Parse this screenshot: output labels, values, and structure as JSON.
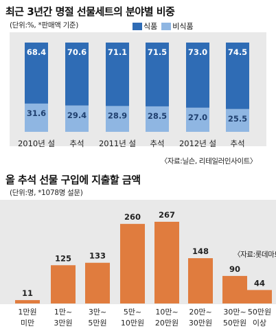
{
  "chart_data": [
    {
      "type": "bar",
      "stacked": true,
      "title": "최근 3년간 명절 선물세트의 분야별 비중",
      "unit_note": "(단위:%, *판매액 기준)",
      "source": "〈자료:닐슨, 리테일러인사이트〉",
      "legend_position": "top-right",
      "categories": [
        "2010년 설",
        "추석",
        "2011년 설",
        "추석",
        "2012년 설",
        "추석"
      ],
      "series": [
        {
          "name": "식품",
          "color": "#2f6cb5",
          "values": [
            68.4,
            70.6,
            71.1,
            71.5,
            73.0,
            74.5
          ]
        },
        {
          "name": "비식품",
          "color": "#8fb6e2",
          "values": [
            31.6,
            29.4,
            28.9,
            28.5,
            27.0,
            25.5
          ]
        }
      ],
      "ylim": [
        0,
        100
      ]
    },
    {
      "type": "bar",
      "title": "올 추석 선물 구입에 지출할 금액",
      "unit_note": "(단위:명, *1078명 설문)",
      "source": "〈자료:롯데마트〉",
      "bar_color": "#e07c3e",
      "categories": [
        [
          "1만원",
          "미만"
        ],
        [
          "1만~",
          "3만원"
        ],
        [
          "3만~",
          "5만원"
        ],
        [
          "5만~",
          "10만원"
        ],
        [
          "10만~",
          "20만원"
        ],
        [
          "20만~",
          "30만원"
        ],
        [
          "30만~",
          "50만원"
        ],
        [
          "50만원",
          "이상"
        ]
      ],
      "values": [
        11,
        125,
        133,
        260,
        267,
        148,
        90,
        44
      ],
      "ylim": [
        0,
        267
      ]
    }
  ]
}
